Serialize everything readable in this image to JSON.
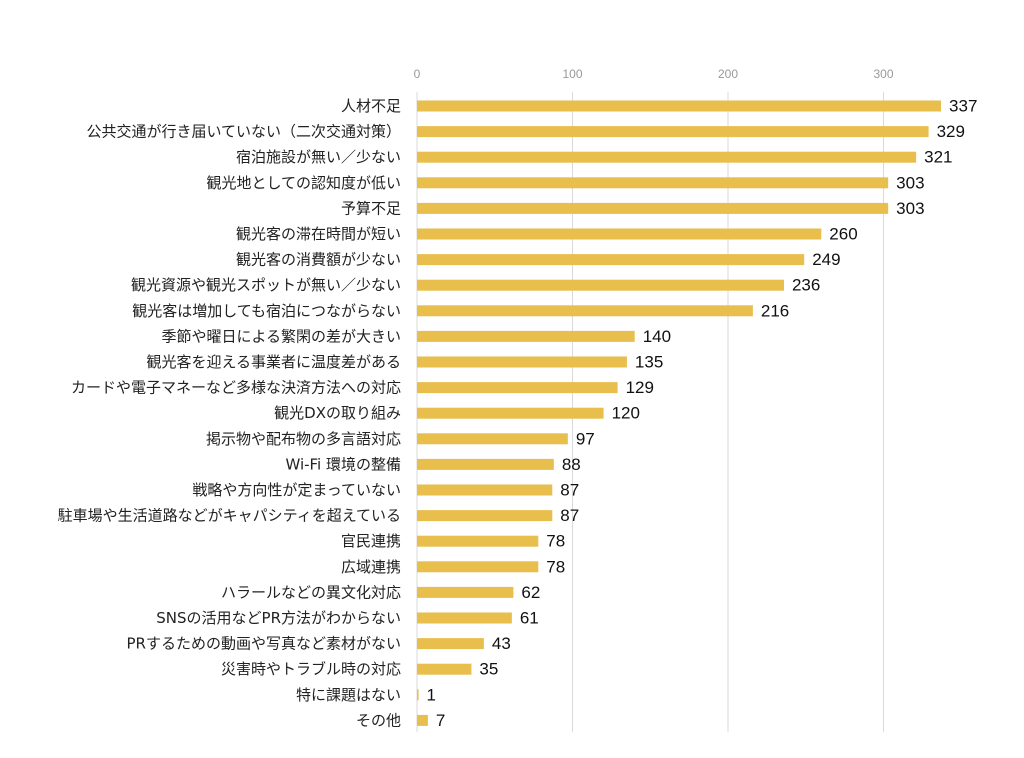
{
  "chart_data": {
    "type": "bar",
    "orientation": "horizontal",
    "title": "",
    "xlabel": "",
    "ylabel": "",
    "xlim": [
      0,
      340
    ],
    "xticks": [
      0,
      100,
      200,
      300
    ],
    "grid": true,
    "bar_color": "#E8BE4C",
    "grid_color": "#D9D9D9",
    "categories": [
      "人材不足",
      "公共交通が行き届いていない（二次交通対策）",
      "宿泊施設が無い／少ない",
      "観光地としての認知度が低い",
      "予算不足",
      "観光客の滞在時間が短い",
      "観光客の消費額が少ない",
      "観光資源や観光スポットが無い／少ない",
      "観光客は増加しても宿泊につながらない",
      "季節や曜日による繁閑の差が大きい",
      "観光客を迎える事業者に温度差がある",
      "カードや電子マネーなど多様な決済方法への対応",
      "観光DXの取り組み",
      "掲示物や配布物の多言語対応",
      "Wi-Fi 環境の整備",
      "戦略や方向性が定まっていない",
      "駐車場や生活道路などがキャパシティを超えている",
      "官民連携",
      "広域連携",
      "ハラールなどの異文化対応",
      "SNSの活用などPR方法がわからない",
      "PRするための動画や写真など素材がない",
      "災害時やトラブル時の対応",
      "特に課題はない",
      "その他"
    ],
    "values": [
      337,
      329,
      321,
      303,
      303,
      260,
      249,
      236,
      216,
      140,
      135,
      129,
      120,
      97,
      88,
      87,
      87,
      78,
      78,
      62,
      61,
      43,
      35,
      1,
      7
    ]
  }
}
